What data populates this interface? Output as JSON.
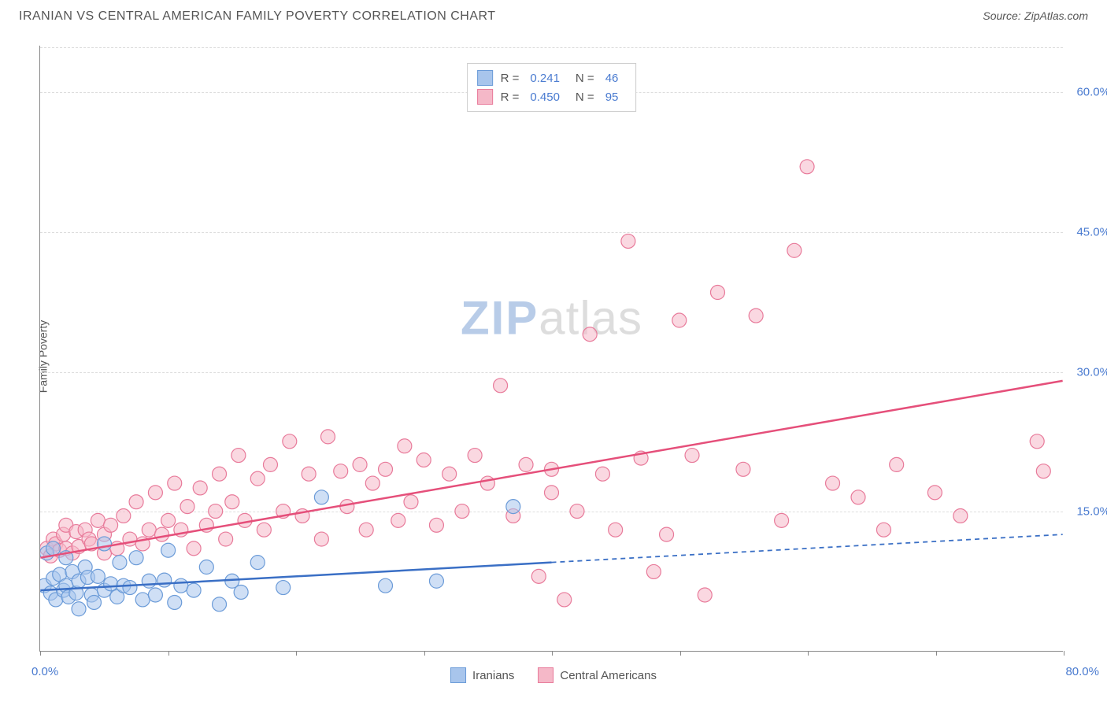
{
  "title": "IRANIAN VS CENTRAL AMERICAN FAMILY POVERTY CORRELATION CHART",
  "source_label": "Source:",
  "source_value": "ZipAtlas.com",
  "y_axis_label": "Family Poverty",
  "chart": {
    "type": "scatter",
    "xlim": [
      0,
      80
    ],
    "ylim": [
      0,
      65
    ],
    "x_tick_step": 10,
    "y_ticks": [
      15,
      30,
      45,
      60
    ],
    "y_tick_labels": [
      "15.0%",
      "30.0%",
      "45.0%",
      "60.0%"
    ],
    "x_min_label": "0.0%",
    "x_max_label": "80.0%",
    "grid_color": "#dddddd",
    "background_color": "#ffffff",
    "axis_color": "#888888",
    "tick_label_color": "#4a7bd0",
    "marker_radius": 9,
    "marker_stroke_width": 1.2,
    "trend_line_width": 2.5,
    "series": [
      {
        "id": "iranians",
        "name": "Iranians",
        "fill_color": "#a8c5ec",
        "stroke_color": "#6b9bd8",
        "fill_opacity": 0.55,
        "R": "0.241",
        "N": "46",
        "trend": {
          "x1": 0,
          "y1": 6.5,
          "x2": 40,
          "y2": 9.5,
          "dash_x2": 80,
          "dash_y2": 12.5,
          "color": "#3a6fc5"
        },
        "points": [
          [
            0.3,
            7
          ],
          [
            0.5,
            10.5
          ],
          [
            0.8,
            6.2
          ],
          [
            1,
            7.8
          ],
          [
            1,
            11
          ],
          [
            1.2,
            5.5
          ],
          [
            1.5,
            8.2
          ],
          [
            1.8,
            6.5
          ],
          [
            2,
            7
          ],
          [
            2,
            10
          ],
          [
            2.2,
            5.8
          ],
          [
            2.5,
            8.5
          ],
          [
            2.8,
            6.2
          ],
          [
            3,
            7.5
          ],
          [
            3,
            4.5
          ],
          [
            3.5,
            9
          ],
          [
            3.7,
            7.9
          ],
          [
            4,
            6
          ],
          [
            4.2,
            5.2
          ],
          [
            4.5,
            8
          ],
          [
            5,
            11.5
          ],
          [
            5,
            6.5
          ],
          [
            5.5,
            7.2
          ],
          [
            6,
            5.8
          ],
          [
            6.2,
            9.5
          ],
          [
            6.5,
            7
          ],
          [
            7,
            6.8
          ],
          [
            7.5,
            10
          ],
          [
            8,
            5.5
          ],
          [
            8.5,
            7.5
          ],
          [
            9,
            6
          ],
          [
            9.7,
            7.6
          ],
          [
            10,
            10.8
          ],
          [
            10.5,
            5.2
          ],
          [
            11,
            7
          ],
          [
            12,
            6.5
          ],
          [
            13,
            9
          ],
          [
            14,
            5
          ],
          [
            15,
            7.5
          ],
          [
            15.7,
            6.3
          ],
          [
            17,
            9.5
          ],
          [
            19,
            6.8
          ],
          [
            22,
            16.5
          ],
          [
            27,
            7
          ],
          [
            31,
            7.5
          ],
          [
            37,
            15.5
          ]
        ]
      },
      {
        "id": "central_americans",
        "name": "Central Americans",
        "fill_color": "#f5b8c8",
        "stroke_color": "#e87a9a",
        "fill_opacity": 0.55,
        "R": "0.450",
        "N": "95",
        "trend": {
          "x1": 0,
          "y1": 10,
          "x2": 80,
          "y2": 29,
          "color": "#e54f7a"
        },
        "points": [
          [
            0.5,
            11
          ],
          [
            0.8,
            10.2
          ],
          [
            1,
            12
          ],
          [
            1.2,
            11.5
          ],
          [
            1.5,
            10.8
          ],
          [
            1.8,
            12.5
          ],
          [
            2,
            11
          ],
          [
            2,
            13.5
          ],
          [
            2.5,
            10.5
          ],
          [
            2.8,
            12.8
          ],
          [
            3,
            11.2
          ],
          [
            3.5,
            13
          ],
          [
            3.8,
            12
          ],
          [
            4,
            11.5
          ],
          [
            4.5,
            14
          ],
          [
            5,
            10.5
          ],
          [
            5,
            12.5
          ],
          [
            5.5,
            13.5
          ],
          [
            6,
            11
          ],
          [
            6.5,
            14.5
          ],
          [
            7,
            12
          ],
          [
            7.5,
            16
          ],
          [
            8,
            11.5
          ],
          [
            8.5,
            13
          ],
          [
            9,
            17
          ],
          [
            9.5,
            12.5
          ],
          [
            10,
            14
          ],
          [
            10.5,
            18
          ],
          [
            11,
            13
          ],
          [
            11.5,
            15.5
          ],
          [
            12,
            11
          ],
          [
            12.5,
            17.5
          ],
          [
            13,
            13.5
          ],
          [
            13.7,
            15
          ],
          [
            14,
            19
          ],
          [
            14.5,
            12
          ],
          [
            15,
            16
          ],
          [
            15.5,
            21
          ],
          [
            16,
            14
          ],
          [
            17,
            18.5
          ],
          [
            17.5,
            13
          ],
          [
            18,
            20
          ],
          [
            19,
            15
          ],
          [
            19.5,
            22.5
          ],
          [
            20.5,
            14.5
          ],
          [
            21,
            19
          ],
          [
            22,
            12
          ],
          [
            22.5,
            23
          ],
          [
            23.5,
            19.3
          ],
          [
            24,
            15.5
          ],
          [
            25,
            20
          ],
          [
            25.5,
            13
          ],
          [
            26,
            18
          ],
          [
            27,
            19.5
          ],
          [
            28,
            14
          ],
          [
            28.5,
            22
          ],
          [
            29,
            16
          ],
          [
            30,
            20.5
          ],
          [
            31,
            13.5
          ],
          [
            32,
            19
          ],
          [
            33,
            15
          ],
          [
            34,
            21
          ],
          [
            35,
            18
          ],
          [
            36,
            28.5
          ],
          [
            37,
            14.5
          ],
          [
            38,
            20
          ],
          [
            39,
            8
          ],
          [
            40,
            17
          ],
          [
            40,
            19.5
          ],
          [
            41,
            5.5
          ],
          [
            42,
            15
          ],
          [
            43,
            34
          ],
          [
            44,
            19
          ],
          [
            45,
            13
          ],
          [
            46,
            44
          ],
          [
            47,
            20.7
          ],
          [
            48,
            8.5
          ],
          [
            49,
            12.5
          ],
          [
            50,
            35.5
          ],
          [
            51,
            21
          ],
          [
            52,
            6
          ],
          [
            53,
            38.5
          ],
          [
            55,
            19.5
          ],
          [
            56,
            36
          ],
          [
            58,
            14
          ],
          [
            59,
            43
          ],
          [
            60,
            52
          ],
          [
            62,
            18
          ],
          [
            64,
            16.5
          ],
          [
            66,
            13
          ],
          [
            67,
            20
          ],
          [
            70,
            17
          ],
          [
            72,
            14.5
          ],
          [
            78,
            22.5
          ],
          [
            78.5,
            19.3
          ]
        ]
      }
    ]
  },
  "legend_top": {
    "R_label": "R =",
    "N_label": "N ="
  },
  "watermark": {
    "part1": "ZIP",
    "part2": "atlas"
  }
}
